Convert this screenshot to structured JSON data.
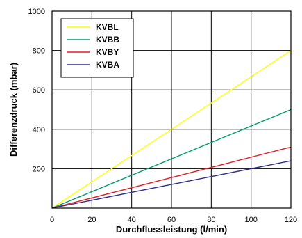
{
  "chart_data": {
    "type": "line",
    "xlabel": "Durchflussleistung (l/min)",
    "ylabel": "Differenzdruck (mbar)",
    "xlim": [
      0,
      120
    ],
    "ylim": [
      0,
      1000
    ],
    "x_ticks": [
      "0",
      "20",
      "40",
      "60",
      "80",
      "100",
      "120"
    ],
    "y_ticks": [
      "200",
      "400",
      "600",
      "800",
      "1000"
    ],
    "grid": true,
    "legend_position": "top-left",
    "series": [
      {
        "name": "KVBL",
        "color": "#ffff00",
        "x": [
          0,
          120
        ],
        "y": [
          0,
          800
        ]
      },
      {
        "name": "KVBB",
        "color": "#009a6e",
        "x": [
          0,
          120
        ],
        "y": [
          0,
          500
        ]
      },
      {
        "name": "KVBY",
        "color": "#e31b23",
        "x": [
          0,
          120
        ],
        "y": [
          0,
          310
        ]
      },
      {
        "name": "KVBA",
        "color": "#2b2b8f",
        "x": [
          0,
          120
        ],
        "y": [
          0,
          240
        ]
      }
    ]
  }
}
